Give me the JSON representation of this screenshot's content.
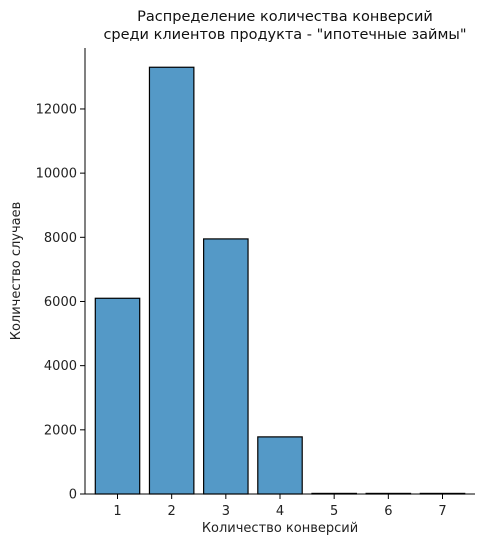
{
  "chart_data": {
    "type": "bar",
    "title_lines": [
      "Распределение количества конверсий",
      "среди клиентов продукта - \"ипотечные займы\""
    ],
    "xlabel": "Количество конверсий",
    "ylabel": "Количество случаев",
    "categories": [
      "1",
      "2",
      "3",
      "4",
      "5",
      "6",
      "7"
    ],
    "values": [
      6100,
      13300,
      7950,
      1780,
      12,
      6,
      3
    ],
    "xlim": [
      0.4,
      7.6
    ],
    "ylim": [
      0,
      13900
    ],
    "yticks": [
      0,
      2000,
      4000,
      6000,
      8000,
      10000,
      12000
    ],
    "xticks": [
      1,
      2,
      3,
      4,
      5,
      6,
      7
    ],
    "bar_color": "#5499c7",
    "edge_color": "#000000",
    "grid": false
  }
}
